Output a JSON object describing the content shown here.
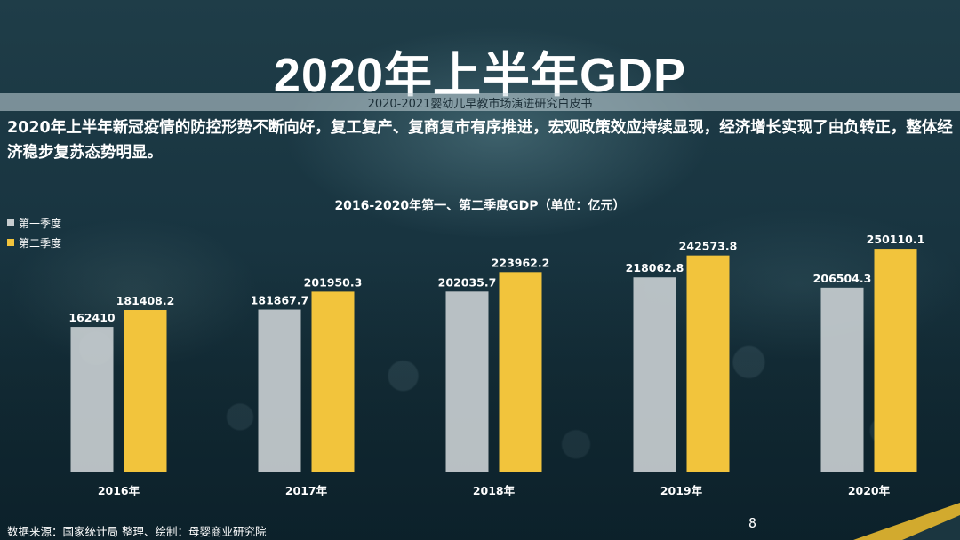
{
  "slide": {
    "title": "2020年上半年GDP",
    "subtitle": "2020-2021婴幼儿早教市场演进研究白皮书",
    "intro": "2020年上半年新冠疫情的防控形势不断向好，复工复产、复商复市有序推进，宏观政策效应持续显现，经济增长实现了由负转正，整体经济稳步复苏态势明显。",
    "footer": "数据来源：国家统计局     整理、绘制：母婴商业研究院",
    "page_number": "8"
  },
  "colors": {
    "q1": "#c7cdd0",
    "q2": "#f2c43c",
    "accent_corner": "#e8b92f"
  },
  "chart_data": {
    "type": "bar",
    "title": "2016-2020年第一、第二季度GDP（单位：亿元）",
    "categories": [
      "2016年",
      "2017年",
      "2018年",
      "2019年",
      "2020年"
    ],
    "series": [
      {
        "name": "第一季度",
        "values": [
          162410,
          181867.7,
          202035.7,
          218062.8,
          206504.3
        ],
        "labels": [
          "162410",
          "181867.7",
          "202035.7",
          "218062.8",
          "206504.3"
        ]
      },
      {
        "name": "第二季度",
        "values": [
          181408.2,
          201950.3,
          223962.2,
          242573.8,
          250110.1
        ],
        "labels": [
          "181408.2",
          "201950.3",
          "223962.2",
          "242573.8",
          "250110.1"
        ]
      }
    ],
    "xlabel": "",
    "ylabel": "",
    "ylim": [
      0,
      310000
    ],
    "legend_position": "top-left",
    "grid": false
  }
}
